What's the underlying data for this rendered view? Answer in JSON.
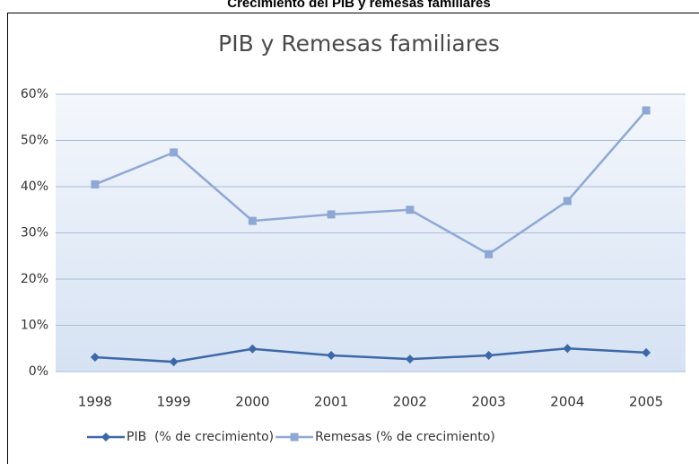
{
  "heading": "Crecimiento del PIB y remesas familiares",
  "chart_data": {
    "type": "line",
    "title": "PIB y Remesas familiares",
    "categories": [
      "1998",
      "1999",
      "2000",
      "2001",
      "2002",
      "2003",
      "2004",
      "2005"
    ],
    "series": [
      {
        "name": "PIB  (% de crecimiento)",
        "color": "#3d68a8",
        "marker": "diamond",
        "values": [
          3.1,
          2.1,
          4.9,
          3.5,
          2.7,
          3.5,
          5.0,
          4.1
        ]
      },
      {
        "name": "Remesas (% de crecimiento)",
        "color": "#8ea8d6",
        "marker": "square",
        "values": [
          40.5,
          47.4,
          32.6,
          34.0,
          35.0,
          25.4,
          36.9,
          56.5
        ]
      }
    ],
    "ylim": [
      0,
      60
    ],
    "yticks": [
      {
        "value": 0,
        "label": "0%"
      },
      {
        "value": 10,
        "label": "10%"
      },
      {
        "value": 20,
        "label": "20%"
      },
      {
        "value": 30,
        "label": "30%"
      },
      {
        "value": 40,
        "label": "40%"
      },
      {
        "value": 50,
        "label": "50%"
      },
      {
        "value": 60,
        "label": "60%"
      }
    ],
    "grid": true,
    "legend": "bottom"
  }
}
